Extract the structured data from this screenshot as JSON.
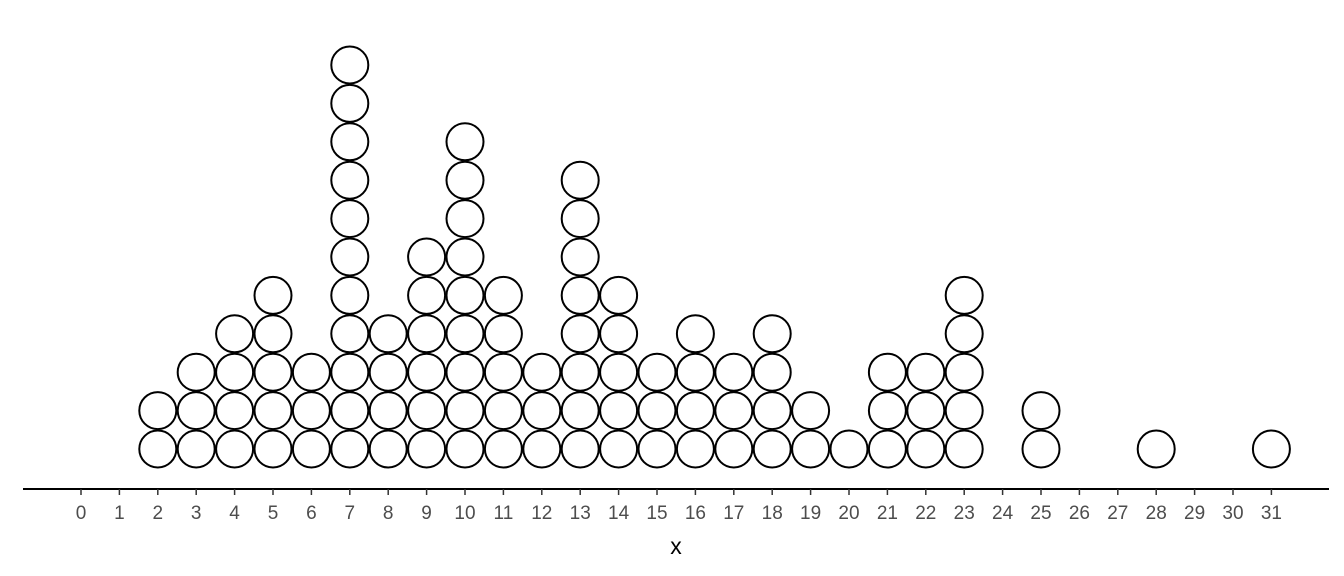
{
  "chart_data": {
    "type": "dotplot",
    "title": "",
    "xlabel": "x",
    "ylabel": "",
    "xlim": [
      -1.5,
      32.5
    ],
    "x_ticks": [
      0,
      1,
      2,
      3,
      4,
      5,
      6,
      7,
      8,
      9,
      10,
      11,
      12,
      13,
      14,
      15,
      16,
      17,
      18,
      19,
      20,
      21,
      22,
      23,
      24,
      25,
      26,
      27,
      28,
      29,
      30,
      31
    ],
    "x": [
      2,
      3,
      4,
      5,
      6,
      7,
      8,
      9,
      10,
      11,
      12,
      13,
      14,
      15,
      16,
      17,
      18,
      19,
      20,
      21,
      22,
      23,
      25,
      28,
      31
    ],
    "counts": [
      2,
      3,
      4,
      5,
      3,
      11,
      4,
      6,
      9,
      5,
      3,
      8,
      5,
      3,
      4,
      3,
      4,
      2,
      1,
      3,
      3,
      5,
      2,
      1,
      1
    ],
    "grid": false,
    "legend": "none"
  }
}
